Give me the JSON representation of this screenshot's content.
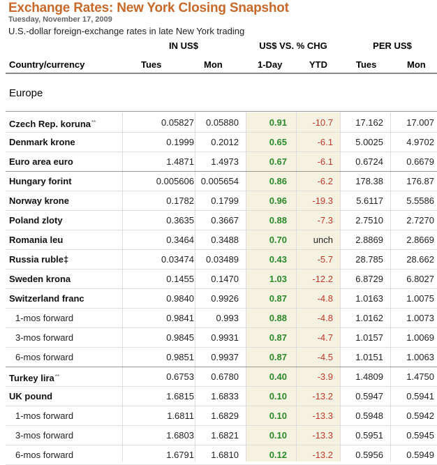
{
  "header": {
    "title": "Exchange Rates: New York Closing Snapshot",
    "date": "Tuesday, November 17, 2009",
    "subtitle": "U.S.-dollar foreign-exchange rates in late New York trading"
  },
  "column_groups": [
    "IN US$",
    "US$ VS. % CHG",
    "PER US$"
  ],
  "columns": {
    "country": "Country/currency",
    "in_tues": "Tues",
    "in_mon": "Mon",
    "chg_1day": "1-Day",
    "chg_ytd": "YTD",
    "per_tues": "Tues",
    "per_mon": "Mon"
  },
  "section": "Europe",
  "rows": [
    {
      "name": "Czech Rep. koruna",
      "mark": "**",
      "sub": false,
      "in_tues": "0.05827",
      "in_mon": "0.05880",
      "d1": "0.91",
      "ytd": "-10.7",
      "per_tues": "17.162",
      "per_mon": "17.007"
    },
    {
      "name": "Denmark krone",
      "mark": "",
      "sub": false,
      "in_tues": "0.1999",
      "in_mon": "0.2012",
      "d1": "0.65",
      "ytd": "-6.1",
      "per_tues": "5.0025",
      "per_mon": "4.9702"
    },
    {
      "name": "Euro area euro",
      "mark": "",
      "sub": false,
      "in_tues": "1.4871",
      "in_mon": "1.4973",
      "d1": "0.67",
      "ytd": "-6.1",
      "per_tues": "0.6724",
      "per_mon": "0.6679"
    },
    {
      "name": "Hungary forint",
      "mark": "",
      "sub": false,
      "in_tues": "0.005606",
      "in_mon": "0.005654",
      "d1": "0.86",
      "ytd": "-6.2",
      "per_tues": "178.38",
      "per_mon": "176.87"
    },
    {
      "name": "Norway krone",
      "mark": "",
      "sub": false,
      "in_tues": "0.1782",
      "in_mon": "0.1799",
      "d1": "0.96",
      "ytd": "-19.3",
      "per_tues": "5.6117",
      "per_mon": "5.5586"
    },
    {
      "name": "Poland zloty",
      "mark": "",
      "sub": false,
      "in_tues": "0.3635",
      "in_mon": "0.3667",
      "d1": "0.88",
      "ytd": "-7.3",
      "per_tues": "2.7510",
      "per_mon": "2.7270"
    },
    {
      "name": "Romania leu",
      "mark": "",
      "sub": false,
      "in_tues": "0.3464",
      "in_mon": "0.3488",
      "d1": "0.70",
      "ytd": "unch",
      "per_tues": "2.8869",
      "per_mon": "2.8669"
    },
    {
      "name": "Russia ruble‡",
      "mark": "",
      "sub": false,
      "in_tues": "0.03474",
      "in_mon": "0.03489",
      "d1": "0.43",
      "ytd": "-5.7",
      "per_tues": "28.785",
      "per_mon": "28.662"
    },
    {
      "name": "Sweden krona",
      "mark": "",
      "sub": false,
      "in_tues": "0.1455",
      "in_mon": "0.1470",
      "d1": "1.03",
      "ytd": "-12.2",
      "per_tues": "6.8729",
      "per_mon": "6.8027"
    },
    {
      "name": "Switzerland franc",
      "mark": "",
      "sub": false,
      "in_tues": "0.9840",
      "in_mon": "0.9926",
      "d1": "0.87",
      "ytd": "-4.8",
      "per_tues": "1.0163",
      "per_mon": "1.0075"
    },
    {
      "name": "1-mos forward",
      "mark": "",
      "sub": true,
      "in_tues": "0.9841",
      "in_mon": "0.993",
      "d1": "0.88",
      "ytd": "-4.8",
      "per_tues": "1.0162",
      "per_mon": "1.0073"
    },
    {
      "name": "3-mos forward",
      "mark": "",
      "sub": true,
      "in_tues": "0.9845",
      "in_mon": "0.9931",
      "d1": "0.87",
      "ytd": "-4.7",
      "per_tues": "1.0157",
      "per_mon": "1.0069"
    },
    {
      "name": "6-mos forward",
      "mark": "",
      "sub": true,
      "in_tues": "0.9851",
      "in_mon": "0.9937",
      "d1": "0.87",
      "ytd": "-4.5",
      "per_tues": "1.0151",
      "per_mon": "1.0063"
    },
    {
      "name": "Turkey lira",
      "mark": "**",
      "sub": false,
      "in_tues": "0.6753",
      "in_mon": "0.6780",
      "d1": "0.40",
      "ytd": "-3.9",
      "per_tues": "1.4809",
      "per_mon": "1.4750"
    },
    {
      "name": "UK pound",
      "mark": "",
      "sub": false,
      "in_tues": "1.6815",
      "in_mon": "1.6833",
      "d1": "0.10",
      "ytd": "-13.2",
      "per_tues": "0.5947",
      "per_mon": "0.5941"
    },
    {
      "name": "1-mos forward",
      "mark": "",
      "sub": true,
      "in_tues": "1.6811",
      "in_mon": "1.6829",
      "d1": "0.10",
      "ytd": "-13.3",
      "per_tues": "0.5948",
      "per_mon": "0.5942"
    },
    {
      "name": "3-mos forward",
      "mark": "",
      "sub": true,
      "in_tues": "1.6803",
      "in_mon": "1.6821",
      "d1": "0.10",
      "ytd": "-13.3",
      "per_tues": "0.5951",
      "per_mon": "0.5945"
    },
    {
      "name": "6-mos forward",
      "mark": "",
      "sub": true,
      "in_tues": "1.6791",
      "in_mon": "1.6810",
      "d1": "0.12",
      "ytd": "-13.2",
      "per_tues": "0.5956",
      "per_mon": "0.5949"
    }
  ]
}
